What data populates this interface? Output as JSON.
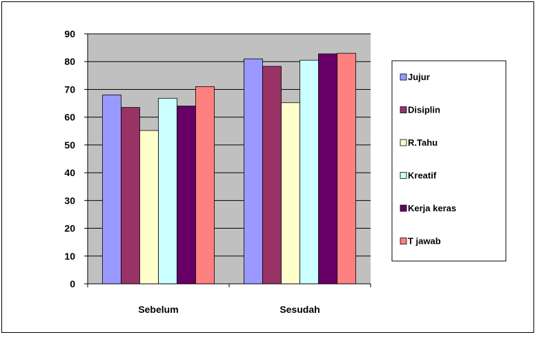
{
  "chart_data": {
    "type": "bar",
    "categories": [
      "Sebelum",
      "Sesudah"
    ],
    "series": [
      {
        "name": "Jujur",
        "color": "#9999FF",
        "values": [
          68,
          81
        ]
      },
      {
        "name": "Disiplin",
        "color": "#993366",
        "values": [
          63.5,
          78.3
        ]
      },
      {
        "name": "R.Tahu",
        "color": "#FFFFCC",
        "values": [
          55.2,
          65.2
        ]
      },
      {
        "name": "Kreatif",
        "color": "#CCFFFF",
        "values": [
          66.8,
          80.5
        ]
      },
      {
        "name": "Kerja keras",
        "color": "#660066",
        "values": [
          64,
          82.8
        ]
      },
      {
        "name": "T jawab",
        "color": "#FF8080",
        "values": [
          71,
          83
        ]
      }
    ],
    "yticks": [
      "0",
      "10",
      "20",
      "30",
      "40",
      "50",
      "60",
      "70",
      "80",
      "90"
    ],
    "ylim": [
      0,
      90
    ],
    "plot_background": "#C0C0C0",
    "grid": true,
    "legend_position": "right"
  }
}
